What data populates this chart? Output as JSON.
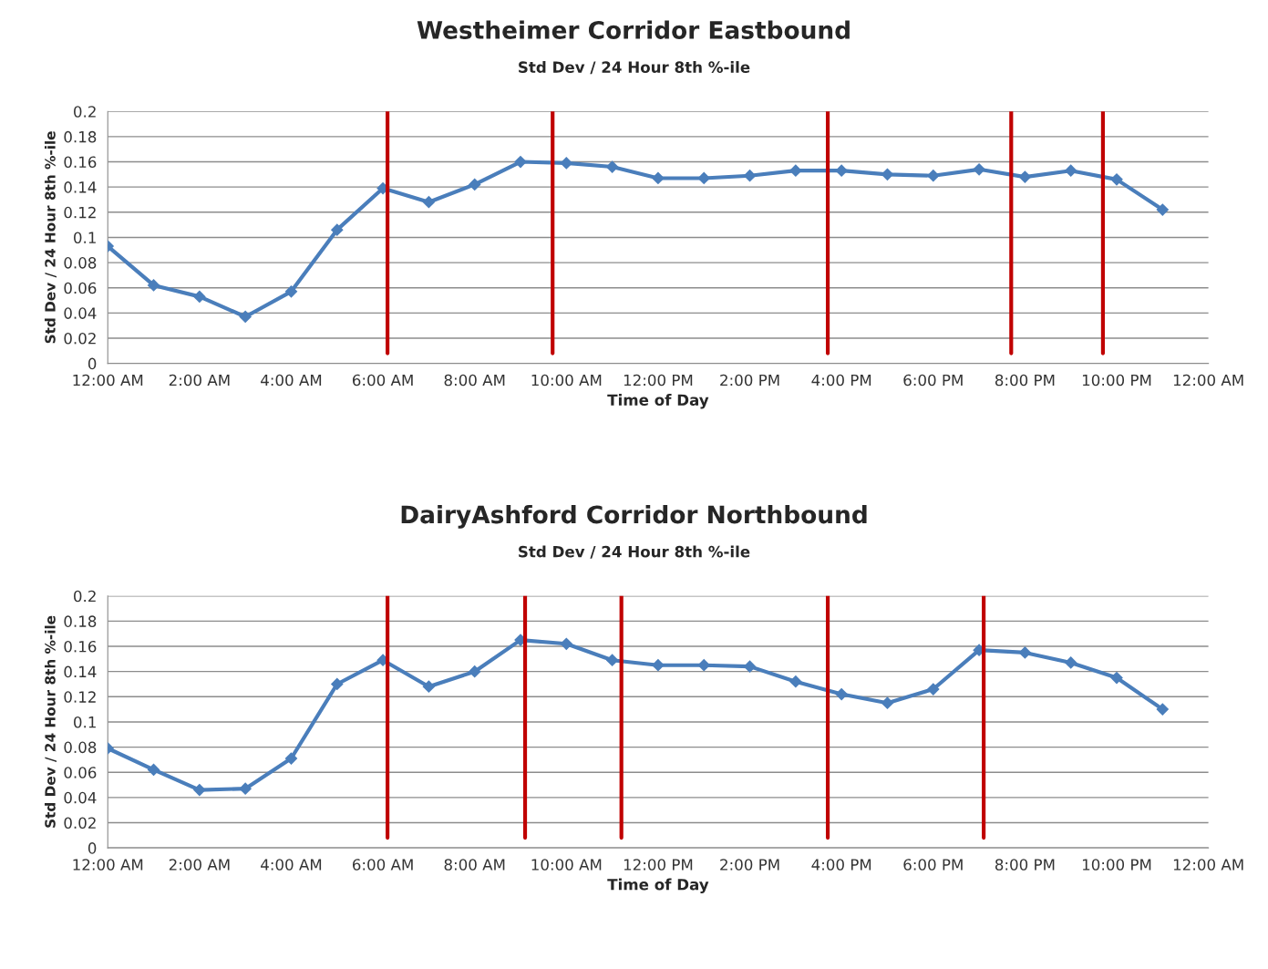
{
  "chart_data": [
    {
      "type": "line",
      "title": "Westheimer Corridor Eastbound",
      "subtitle": "Std Dev / 24 Hour 8th %-ile",
      "xlabel": "Time of Day",
      "ylabel": "Std Dev / 24 Hour 8th %-ile",
      "x": [
        0,
        1,
        2,
        3,
        4,
        5,
        6,
        7,
        8,
        9,
        10,
        11,
        12,
        13,
        14,
        15,
        16,
        17,
        18,
        19,
        20,
        21,
        22,
        23
      ],
      "series": [
        {
          "color": "#4a7ebb",
          "values": [
            0.093,
            0.062,
            0.053,
            0.037,
            0.057,
            0.106,
            0.139,
            0.128,
            0.142,
            0.16,
            0.159,
            0.156,
            0.147,
            0.147,
            0.149,
            0.153,
            0.153,
            0.15,
            0.149,
            0.154,
            0.148,
            0.153,
            0.146,
            0.122
          ]
        }
      ],
      "xlim": [
        0,
        24
      ],
      "xticks": [
        {
          "value": 0,
          "label": "12:00 AM"
        },
        {
          "value": 2,
          "label": "2:00 AM"
        },
        {
          "value": 4,
          "label": "4:00 AM"
        },
        {
          "value": 6,
          "label": "6:00 AM"
        },
        {
          "value": 8,
          "label": "8:00 AM"
        },
        {
          "value": 10,
          "label": "10:00 AM"
        },
        {
          "value": 12,
          "label": "12:00 PM"
        },
        {
          "value": 14,
          "label": "2:00 PM"
        },
        {
          "value": 16,
          "label": "4:00 PM"
        },
        {
          "value": 18,
          "label": "6:00 PM"
        },
        {
          "value": 20,
          "label": "8:00 PM"
        },
        {
          "value": 22,
          "label": "10:00 PM"
        },
        {
          "value": 24,
          "label": "12:00 AM"
        }
      ],
      "ylim": [
        0,
        0.2
      ],
      "yticks": [
        0,
        0.02,
        0.04,
        0.06,
        0.08,
        0.1,
        0.12,
        0.14,
        0.16,
        0.18,
        0.2
      ],
      "ref_lines": [
        {
          "axis": "x",
          "value": 6.1,
          "color": "#c00000"
        },
        {
          "axis": "x",
          "value": 9.7,
          "color": "#c00000"
        },
        {
          "axis": "x",
          "value": 15.7,
          "color": "#c00000"
        },
        {
          "axis": "x",
          "value": 19.7,
          "color": "#c00000"
        },
        {
          "axis": "x",
          "value": 21.7,
          "color": "#c00000"
        }
      ],
      "grid": "y",
      "marker": "diamond",
      "line_style": "solid"
    },
    {
      "type": "line",
      "title": "DairyAshford Corridor Northbound",
      "subtitle": "Std Dev / 24 Hour 8th %-ile",
      "xlabel": "Time of Day",
      "ylabel": "Std Dev / 24 Hour 8th %-ile",
      "x": [
        0,
        1,
        2,
        3,
        4,
        5,
        6,
        7,
        8,
        9,
        10,
        11,
        12,
        13,
        14,
        15,
        16,
        17,
        18,
        19,
        20,
        21,
        22,
        23
      ],
      "series": [
        {
          "color": "#4a7ebb",
          "values": [
            0.079,
            0.062,
            0.046,
            0.047,
            0.071,
            0.13,
            0.149,
            0.128,
            0.14,
            0.165,
            0.162,
            0.149,
            0.145,
            0.145,
            0.144,
            0.132,
            0.122,
            0.115,
            0.126,
            0.157,
            0.155,
            0.147,
            0.135,
            0.11
          ]
        }
      ],
      "xlim": [
        0,
        24
      ],
      "xticks": [
        {
          "value": 0,
          "label": "12:00 AM"
        },
        {
          "value": 2,
          "label": "2:00 AM"
        },
        {
          "value": 4,
          "label": "4:00 AM"
        },
        {
          "value": 6,
          "label": "6:00 AM"
        },
        {
          "value": 8,
          "label": "8:00 AM"
        },
        {
          "value": 10,
          "label": "10:00 AM"
        },
        {
          "value": 12,
          "label": "12:00 PM"
        },
        {
          "value": 14,
          "label": "2:00 PM"
        },
        {
          "value": 16,
          "label": "4:00 PM"
        },
        {
          "value": 18,
          "label": "6:00 PM"
        },
        {
          "value": 20,
          "label": "8:00 PM"
        },
        {
          "value": 22,
          "label": "10:00 PM"
        },
        {
          "value": 24,
          "label": "12:00 AM"
        }
      ],
      "ylim": [
        0,
        0.2
      ],
      "yticks": [
        0,
        0.02,
        0.04,
        0.06,
        0.08,
        0.1,
        0.12,
        0.14,
        0.16,
        0.18,
        0.2
      ],
      "ref_lines": [
        {
          "axis": "x",
          "value": 6.1,
          "color": "#c00000"
        },
        {
          "axis": "x",
          "value": 9.1,
          "color": "#c00000"
        },
        {
          "axis": "x",
          "value": 11.2,
          "color": "#c00000"
        },
        {
          "axis": "x",
          "value": 15.7,
          "color": "#c00000"
        },
        {
          "axis": "x",
          "value": 19.1,
          "color": "#c00000"
        }
      ],
      "grid": "y",
      "marker": "diamond",
      "line_style": "solid"
    }
  ]
}
